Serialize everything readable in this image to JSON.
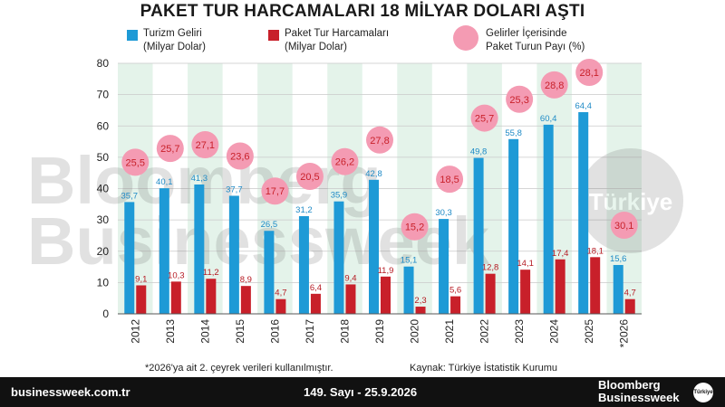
{
  "chart_data": {
    "type": "bar",
    "title": "PAKET TUR HARCAMALARI 18 MİLYAR DOLARI AŞTI",
    "categories": [
      "2012",
      "2013",
      "2014",
      "2015",
      "2016",
      "2017",
      "2018",
      "2019",
      "2020",
      "2021",
      "2022",
      "2023",
      "2024",
      "2025",
      "*2026"
    ],
    "series": [
      {
        "name": "Turizm Geliri (Milyar Dolar)",
        "unit_line1": "Turizm Geliri",
        "unit_line2": "(Milyar Dolar)",
        "color": "#1e9ad6",
        "values": [
          35.7,
          40.1,
          41.3,
          37.7,
          26.5,
          31.2,
          35.9,
          42.8,
          15.1,
          30.3,
          49.8,
          55.8,
          60.4,
          64.4,
          15.6
        ],
        "labels": [
          "35,7",
          "40,1",
          "41,3",
          "37,7",
          "26,5",
          "31,2",
          "35,9",
          "42,8",
          "15,1",
          "30,3",
          "49,8",
          "55,8",
          "60,4",
          "64,4",
          "15,6"
        ]
      },
      {
        "name": "Paket Tur Harcamaları (Milyar Dolar)",
        "unit_line1": "Paket Tur Harcamaları",
        "unit_line2": "(Milyar Dolar)",
        "color": "#c8202a",
        "values": [
          9.1,
          10.3,
          11.2,
          8.9,
          4.7,
          6.4,
          9.4,
          11.9,
          2.3,
          5.6,
          12.8,
          14.1,
          17.4,
          18.1,
          4.7
        ],
        "labels": [
          "9,1",
          "10,3",
          "11,2",
          "8,9",
          "4,7",
          "6,4",
          "9,4",
          "11,9",
          "2,3",
          "5,6",
          "12,8",
          "14,1",
          "17,4",
          "18,1",
          "4,7"
        ]
      },
      {
        "name": "Gelirler İçerisinde Paket Turun Payı (%)",
        "unit_line1": "Gelirler İçerisinde",
        "unit_line2": "Paket Turun Payı (%)",
        "color": "#f49bb3",
        "values": [
          25.5,
          25.7,
          27.1,
          23.6,
          17.7,
          20.5,
          26.2,
          27.8,
          15.2,
          18.5,
          25.7,
          25.3,
          28.8,
          28.1,
          30.1
        ],
        "labels": [
          "25,5",
          "25,7",
          "27,1",
          "23,6",
          "17,7",
          "20,5",
          "26,2",
          "27,8",
          "15,2",
          "18,5",
          "25,7",
          "25,3",
          "28,8",
          "28,1",
          "30,1"
        ]
      }
    ],
    "ylim": [
      0,
      80
    ],
    "yticks": [
      0,
      10,
      20,
      30,
      40,
      50,
      60,
      70,
      80
    ],
    "grid": true,
    "legend": "top"
  },
  "watermark": {
    "line1": "Bloomberg",
    "line2": "Businessweek",
    "circle_text": "Türkiye"
  },
  "notes": {
    "left": "*2026'ya ait 2. çeyrek verileri kullanılmıştır.",
    "right": "Kaynak: Türkiye İstatistik Kurumu"
  },
  "footer": {
    "site": "businessweek.com.tr",
    "issue": "149. Sayı - 25.9.2026",
    "brand_line1": "Bloomberg",
    "brand_line2": "Businessweek",
    "badge": "Türkiye"
  }
}
